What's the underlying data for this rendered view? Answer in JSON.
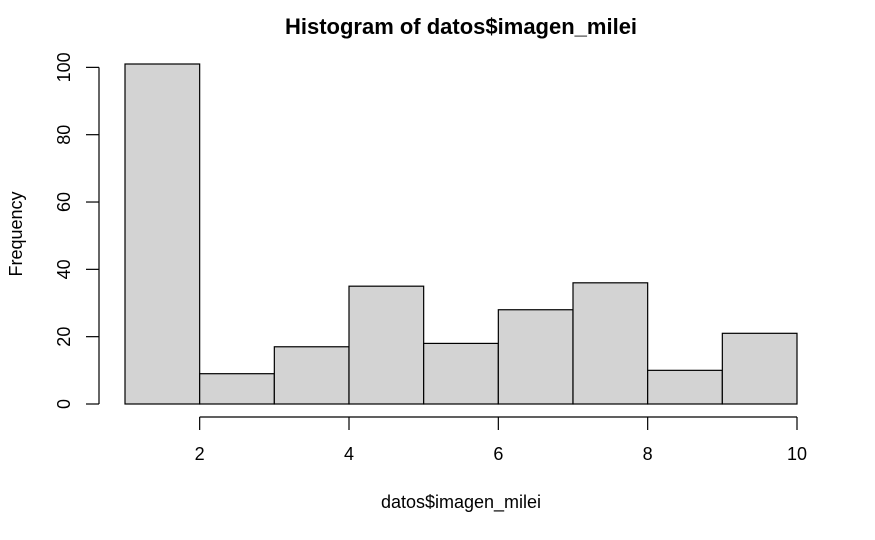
{
  "chart_data": {
    "type": "bar",
    "title": "Histogram of datos$imagen_milei",
    "xlabel": "datos$imagen_milei",
    "ylabel": "Frequency",
    "bins": [
      {
        "start": 1,
        "end": 2,
        "count": 101
      },
      {
        "start": 2,
        "end": 3,
        "count": 9
      },
      {
        "start": 3,
        "end": 4,
        "count": 17
      },
      {
        "start": 4,
        "end": 5,
        "count": 35
      },
      {
        "start": 5,
        "end": 6,
        "count": 18
      },
      {
        "start": 6,
        "end": 7,
        "count": 28
      },
      {
        "start": 7,
        "end": 8,
        "count": 36
      },
      {
        "start": 8,
        "end": 9,
        "count": 10
      },
      {
        "start": 9,
        "end": 10,
        "count": 21
      }
    ],
    "xlim": [
      1,
      10
    ],
    "ylim": [
      0,
      101
    ],
    "x_ticks": [
      2,
      4,
      6,
      8,
      10
    ],
    "y_ticks": [
      0,
      20,
      40,
      60,
      80,
      100
    ],
    "grid": false,
    "colors": {
      "bar_fill": "#d3d3d3",
      "bar_stroke": "#000000"
    }
  }
}
